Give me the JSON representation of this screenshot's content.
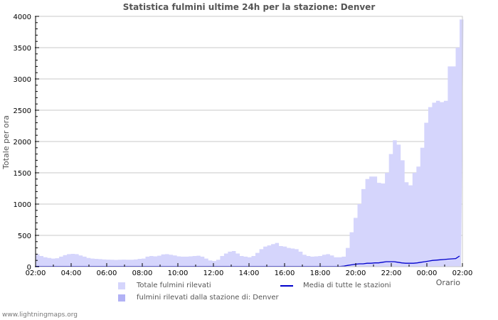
{
  "chart_data": {
    "type": "area",
    "title": "Statistica fulmini ultime 24h per la stazione: Denver",
    "xlabel": "Orario",
    "ylabel": "Totale per ora",
    "ylim": [
      0,
      4000
    ],
    "yticks": [
      0,
      500,
      1000,
      1500,
      2000,
      2500,
      3000,
      3500,
      4000
    ],
    "xticks": [
      "02:00",
      "04:00",
      "06:00",
      "08:00",
      "10:00",
      "12:00",
      "14:00",
      "16:00",
      "18:00",
      "20:00",
      "22:00",
      "00:00",
      "02:00"
    ],
    "grid": true,
    "legend_position": "bottom",
    "x_interval_minutes": 15,
    "series": [
      {
        "name": "Totale fulmini rilevati",
        "kind": "area",
        "color": "#d5d5fc",
        "values": [
          200,
          170,
          150,
          140,
          130,
          135,
          160,
          185,
          200,
          205,
          200,
          180,
          160,
          140,
          130,
          125,
          120,
          115,
          112,
          110,
          108,
          110,
          112,
          110,
          110,
          115,
          125,
          130,
          160,
          170,
          165,
          175,
          195,
          200,
          190,
          180,
          165,
          160,
          160,
          165,
          170,
          175,
          160,
          130,
          100,
          90,
          110,
          170,
          210,
          240,
          250,
          210,
          170,
          160,
          150,
          170,
          220,
          280,
          320,
          340,
          360,
          380,
          330,
          320,
          300,
          290,
          280,
          240,
          190,
          170,
          160,
          165,
          170,
          190,
          200,
          180,
          150,
          150,
          160,
          300,
          550,
          780,
          1000,
          1240,
          1400,
          1440,
          1440,
          1340,
          1330,
          1500,
          1800,
          2020,
          1950,
          1700,
          1350,
          1300,
          1500
        ],
        "values_tail": [
          1500,
          1600,
          1900,
          2300,
          2550,
          2620,
          2650,
          2630,
          2650,
          3200,
          3200,
          3500,
          3950
        ]
      },
      {
        "name": "fulmini rilevati dalla stazione di: Denver",
        "kind": "area",
        "color": "#b2b2f5",
        "values": []
      },
      {
        "name": "Media di tutte le stazioni",
        "kind": "line",
        "color": "#0000cc",
        "values": [
          5,
          5,
          5,
          5,
          5,
          5,
          5,
          5,
          5,
          5,
          5,
          5,
          5,
          5,
          5,
          5,
          5,
          5,
          5,
          5,
          5,
          5,
          5,
          5,
          5,
          5,
          5,
          5,
          5,
          5,
          5,
          5,
          5,
          5,
          5,
          5,
          5,
          5,
          5,
          5,
          5,
          5,
          5,
          5,
          5,
          5,
          5,
          5,
          5,
          5,
          5,
          5,
          5,
          5,
          5,
          5,
          5,
          5,
          5,
          5,
          5,
          5,
          5,
          5,
          5,
          5,
          5,
          5,
          5,
          5,
          5,
          5,
          5,
          5,
          5,
          5,
          5,
          5,
          5,
          5,
          10,
          20,
          30,
          40,
          45,
          45,
          55,
          55,
          60,
          60,
          70,
          80,
          80,
          80,
          70,
          60,
          55,
          55,
          55,
          60,
          70,
          80,
          90,
          100,
          105,
          110,
          115,
          120,
          125,
          130,
          170
        ]
      }
    ]
  },
  "page": {
    "title": "Statistica fulmini ultime 24h per la stazione: Denver",
    "watermark": "www.lightningmaps.org"
  },
  "legend": {
    "items": [
      {
        "label": "Totale fulmini rilevati",
        "color": "#d5d5fc"
      },
      {
        "label": "fulmini rilevati dalla stazione di: Denver",
        "color": "#b2b2f5"
      },
      {
        "label": "Media di tutte le stazioni",
        "color": "#0000cc"
      }
    ]
  },
  "axes": {
    "xlabel": "Orario",
    "ylabel": "Totale per ora"
  }
}
